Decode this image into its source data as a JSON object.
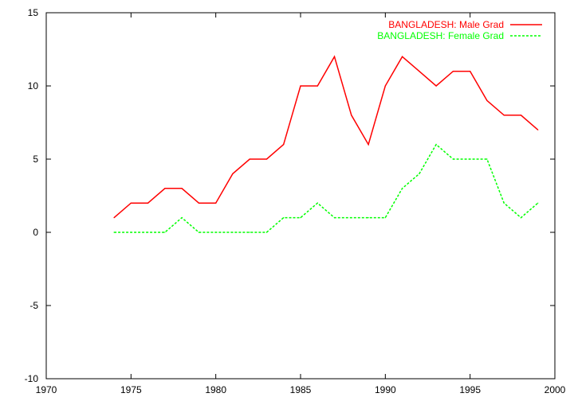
{
  "chart_data": {
    "type": "line",
    "title": "",
    "xlabel": "",
    "ylabel": "",
    "xlim": [
      1970,
      2000
    ],
    "ylim": [
      -10,
      15
    ],
    "xticks": [
      1970,
      1975,
      1980,
      1985,
      1990,
      1995,
      2000
    ],
    "yticks": [
      -10,
      -5,
      0,
      5,
      10,
      15
    ],
    "grid": false,
    "legend_position": "top-right",
    "x": [
      1974,
      1975,
      1976,
      1977,
      1978,
      1979,
      1980,
      1981,
      1982,
      1983,
      1984,
      1985,
      1986,
      1987,
      1988,
      1989,
      1990,
      1991,
      1992,
      1993,
      1994,
      1995,
      1996,
      1997,
      1998,
      1999
    ],
    "series": [
      {
        "name": "BANGLADESH: Male Grad",
        "color": "#ff0000",
        "dash": "solid",
        "values": [
          1,
          2,
          2,
          3,
          3,
          2,
          2,
          4,
          5,
          5,
          6,
          10,
          10,
          12,
          8,
          6,
          10,
          12,
          11,
          10,
          11,
          11,
          9,
          8,
          8,
          7
        ]
      },
      {
        "name": "BANGLADESH: Female Grad",
        "color": "#00ff00",
        "dash": "dashed",
        "values": [
          0,
          0,
          0,
          0,
          1,
          0,
          0,
          0,
          0,
          0,
          1,
          1,
          2,
          1,
          1,
          1,
          1,
          3,
          4,
          6,
          5,
          5,
          5,
          2,
          1,
          2
        ]
      }
    ]
  }
}
